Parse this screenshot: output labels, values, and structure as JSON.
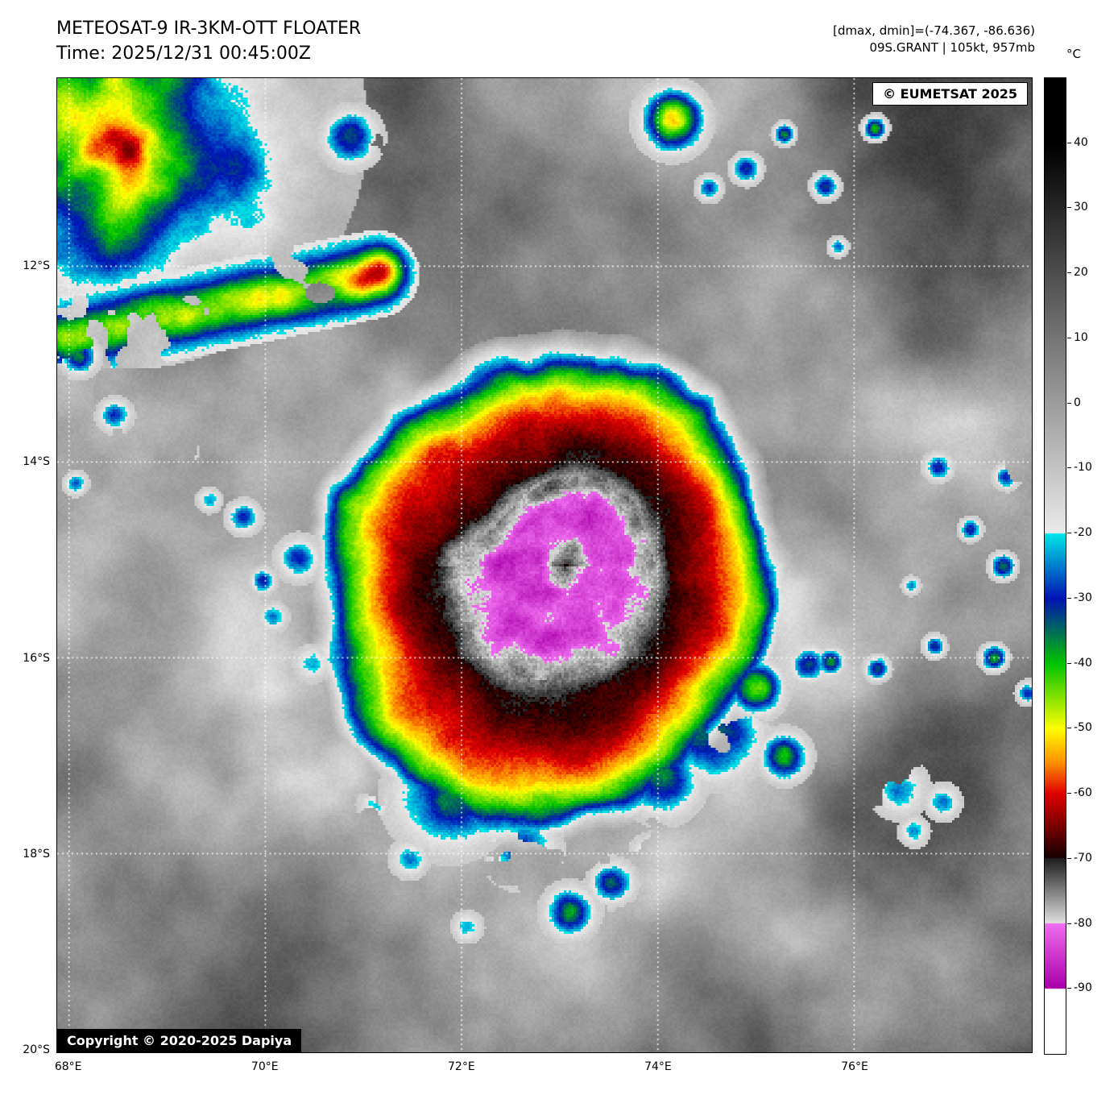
{
  "header": {
    "title": "METEOSAT-9 IR-3KM-OTT FLOATER",
    "time": "Time: 2025/12/31 00:45:00Z",
    "dmax_dmin": "[dmax, dmin]=(-74.367, -86.636)",
    "storm_info": "09S.GRANT | 105kt, 957mb"
  },
  "overlays": {
    "provider": "© EUMETSAT 2025",
    "copyright": "Copyright © 2020-2025 Dapiya"
  },
  "chart_data": {
    "type": "heatmap",
    "title": "METEOSAT-9 IR-3KM-OTT FLOATER",
    "subtitle": "Time: 2025/12/31 00:45:00Z",
    "description": "Infrared (IR) brightness-temperature satellite image of tropical cyclone 09S.GRANT with BD-style color enhancement over grayscale clouds",
    "storm": {
      "id": "09S.GRANT",
      "intensity_kt": 105,
      "pressure_mb": 957,
      "dmax_c": -74.367,
      "dmin_c": -86.636,
      "center_estimate": {
        "lon_e": 73.0,
        "lat_s": 15.1
      }
    },
    "x_axis": {
      "unit": "°E",
      "range": [
        67.88,
        77.81
      ],
      "ticks": [
        {
          "label": "68°E",
          "pos": 0.0121,
          "grid": true
        },
        {
          "label": "70°E",
          "pos": 0.2135,
          "grid": true
        },
        {
          "label": "72°E",
          "pos": 0.4149,
          "grid": true
        },
        {
          "label": "74°E",
          "pos": 0.6163,
          "grid": true
        },
        {
          "label": "76°E",
          "pos": 0.8177,
          "grid": true
        }
      ]
    },
    "y_axis": {
      "unit": "°S",
      "range": [
        10.08,
        20.03
      ],
      "ticks": [
        {
          "label": "12°S",
          "pos": 0.193,
          "grid": true
        },
        {
          "label": "14°S",
          "pos": 0.394,
          "grid": true
        },
        {
          "label": "16°S",
          "pos": 0.595,
          "grid": true
        },
        {
          "label": "18°S",
          "pos": 0.796,
          "grid": true
        },
        {
          "label": "20°S",
          "pos": 0.997,
          "grid": false
        }
      ]
    },
    "colorbar": {
      "unit": "°C",
      "max": 50,
      "min": -100,
      "ticks": [
        40,
        30,
        20,
        10,
        0,
        -10,
        -20,
        -30,
        -40,
        -50,
        -60,
        -70,
        -80,
        -90
      ],
      "segments": "grayscale +50..-20, cyan-blue -20..-30, blue-green -30..-40, green-yellow -40..-50, orange-red -50..-60, red-black -60..-70, black-gray -70..-80, magenta -80..-90, white below -90"
    },
    "grid": "white dotted gridlines",
    "scene": {
      "cyclone": {
        "cx": 0.52,
        "cy": 0.5,
        "profile": [
          [
            0,
            -84
          ],
          [
            75,
            -84
          ],
          [
            95,
            -78
          ],
          [
            120,
            -76
          ],
          [
            140,
            -69
          ],
          [
            175,
            -66
          ],
          [
            200,
            -62
          ],
          [
            220,
            -57
          ],
          [
            235,
            -52
          ],
          [
            245,
            -47
          ],
          [
            258,
            -42
          ],
          [
            270,
            -34
          ],
          [
            280,
            -26
          ],
          [
            295,
            -14
          ],
          [
            315,
            2
          ]
        ]
      },
      "corner_storm": {
        "cx": 0.07,
        "cy": 0.05,
        "r": 300
      },
      "band": {
        "x1": 0.012,
        "y1": 0.265,
        "x2": 0.325,
        "y2": 0.2,
        "width": 55
      },
      "blobs": [
        [
          0.3,
          0.06,
          45,
          -52
        ],
        [
          0.63,
          0.042,
          55,
          -60
        ],
        [
          0.668,
          0.112,
          20,
          -40
        ],
        [
          0.706,
          0.092,
          24,
          -46
        ],
        [
          0.745,
          0.056,
          18,
          -42
        ],
        [
          0.787,
          0.11,
          22,
          -44
        ],
        [
          0.838,
          0.05,
          20,
          -46
        ],
        [
          0.8,
          0.172,
          15,
          -34
        ],
        [
          0.022,
          0.285,
          30,
          -46
        ],
        [
          0.058,
          0.345,
          26,
          -40
        ],
        [
          0.018,
          0.415,
          18,
          -32
        ],
        [
          0.132,
          0.382,
          16,
          -36
        ],
        [
          0.19,
          0.45,
          26,
          -38
        ],
        [
          0.155,
          0.432,
          18,
          -30
        ],
        [
          0.247,
          0.492,
          34,
          -38
        ],
        [
          0.3,
          0.55,
          30,
          -34
        ],
        [
          0.22,
          0.552,
          22,
          -30
        ],
        [
          0.26,
          0.6,
          26,
          -33
        ],
        [
          0.21,
          0.515,
          20,
          -40
        ],
        [
          0.672,
          0.668,
          80,
          -57
        ],
        [
          0.716,
          0.625,
          45,
          -55
        ],
        [
          0.77,
          0.6,
          30,
          -48
        ],
        [
          0.745,
          0.695,
          40,
          -52
        ],
        [
          0.62,
          0.72,
          60,
          -52
        ],
        [
          0.4,
          0.735,
          88,
          -47
        ],
        [
          0.475,
          0.79,
          55,
          -46
        ],
        [
          0.525,
          0.855,
          42,
          -45
        ],
        [
          0.568,
          0.825,
          35,
          -52
        ],
        [
          0.61,
          0.8,
          35,
          -48
        ],
        [
          0.42,
          0.87,
          22,
          -28
        ],
        [
          0.36,
          0.8,
          28,
          -33
        ],
        [
          0.325,
          0.745,
          25,
          -30
        ],
        [
          0.903,
          0.398,
          22,
          -44
        ],
        [
          0.973,
          0.408,
          20,
          -46
        ],
        [
          0.936,
          0.462,
          18,
          -40
        ],
        [
          0.969,
          0.5,
          22,
          -45
        ],
        [
          0.875,
          0.52,
          14,
          -33
        ],
        [
          0.792,
          0.598,
          22,
          -46
        ],
        [
          0.84,
          0.605,
          20,
          -50
        ],
        [
          0.899,
          0.582,
          18,
          -42
        ],
        [
          0.96,
          0.594,
          22,
          -48
        ],
        [
          0.995,
          0.63,
          18,
          -40
        ],
        [
          0.862,
          0.728,
          42,
          -36
        ],
        [
          0.908,
          0.742,
          26,
          -34
        ],
        [
          0.878,
          0.772,
          22,
          -30
        ],
        [
          0.418,
          0.875,
          16,
          -26
        ]
      ]
    }
  }
}
